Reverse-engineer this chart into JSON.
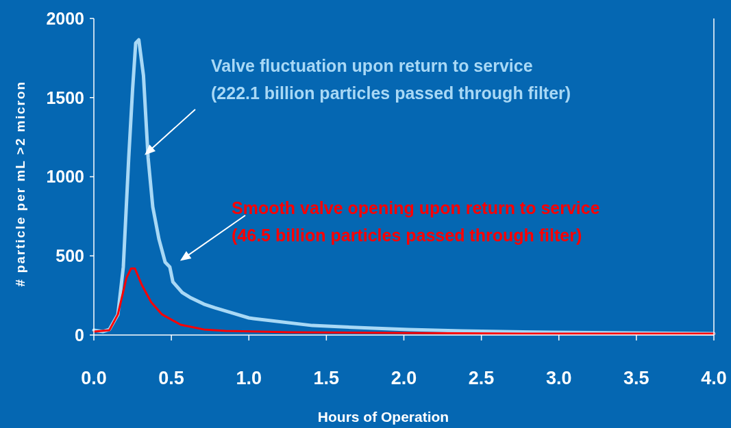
{
  "chart_data": {
    "type": "line",
    "xlabel": "Hours of Operation",
    "ylabel": "# particle per mL >2 micron",
    "xlim": [
      0,
      4
    ],
    "xticks": [
      {
        "value": 0,
        "label": "0.0"
      },
      {
        "value": 0.5,
        "label": "0.5"
      },
      {
        "value": 1,
        "label": "1.0"
      },
      {
        "value": 1.5,
        "label": "1.5"
      },
      {
        "value": 2,
        "label": "2.0"
      },
      {
        "value": 2.5,
        "label": "2.5"
      },
      {
        "value": 3,
        "label": "3.0"
      },
      {
        "value": 3.5,
        "label": "3.5"
      },
      {
        "value": 4,
        "label": "4.0"
      }
    ],
    "ylim": [
      0,
      2000
    ],
    "yticks": [
      0,
      500,
      1000,
      1500,
      2000
    ],
    "grid": false,
    "marker": "none",
    "line_style": "solid",
    "series": [
      {
        "color": "#a8d8f5",
        "x": [
          0,
          0.06,
          0.1,
          0.155,
          0.19,
          0.225,
          0.25,
          0.27,
          0.29,
          0.32,
          0.35,
          0.38,
          0.42,
          0.46,
          0.49,
          0.51,
          0.57,
          0.62,
          0.71,
          0.78,
          0.88,
          1.0,
          1.03,
          1.41,
          1.8,
          2.03,
          2.37,
          2.95,
          4.0
        ],
        "values": [
          30,
          22,
          35,
          130,
          430,
          1120,
          1555,
          1845,
          1865,
          1640,
          1120,
          810,
          605,
          460,
          430,
          335,
          268,
          238,
          195,
          172,
          143,
          108,
          104,
          60,
          43,
          35,
          26,
          17,
          9
        ]
      },
      {
        "color": "#ff0000",
        "x": [
          0,
          0.1,
          0.155,
          0.21,
          0.24,
          0.265,
          0.31,
          0.37,
          0.44,
          0.56,
          0.71,
          0.85,
          1.07,
          1.26,
          2.76,
          4.0
        ],
        "values": [
          22,
          30,
          130,
          360,
          420,
          420,
          315,
          207,
          130,
          65,
          35,
          26,
          22,
          17,
          9,
          9
        ]
      }
    ],
    "annotations": [
      "Valve fluctuation upon return to service\n(222.1 billion particles passed through filter)",
      "Smooth valve opening upon return to service\n(46.5 billion particles passed through filter)"
    ]
  }
}
